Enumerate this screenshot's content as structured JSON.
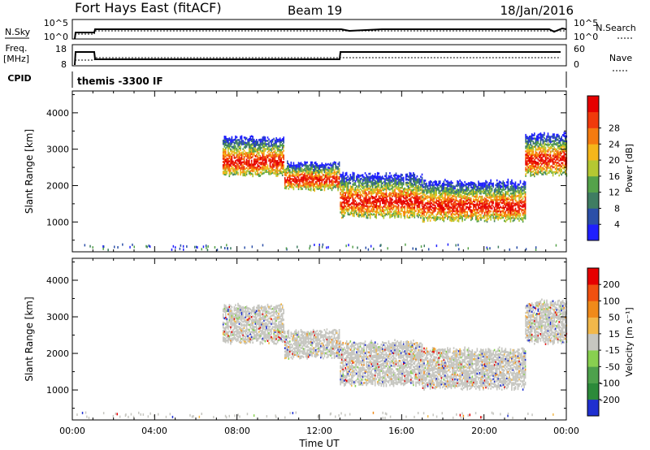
{
  "header": {
    "station": "Fort Hays East (fitACF)",
    "beam": "Beam 19",
    "date": "18/Jan/2016"
  },
  "top_panels": {
    "nsky_label": "N.Sky",
    "nsky_ticks": [
      "10^5",
      "10^0"
    ],
    "nsearch_label": "N.Search",
    "nsearch_ticks": [
      "10^5",
      "10^0"
    ],
    "freq_label_1": "Freq.",
    "freq_label_2": "[MHz]",
    "freq_ticks": [
      "18",
      "8"
    ],
    "nave_label": "Nave",
    "nave_ticks": [
      "60",
      "0"
    ],
    "cpid_label": "CPID",
    "cpid_text": "themis -3300 IF"
  },
  "axes": {
    "xlabel": "Time UT",
    "xticks": [
      "00:00",
      "04:00",
      "08:00",
      "12:00",
      "16:00",
      "20:00",
      "00:00"
    ],
    "ylabel": "Slant Range [km]",
    "yticks": [
      "1000",
      "2000",
      "3000",
      "4000"
    ]
  },
  "power_colorbar": {
    "label": "Power [dB]",
    "ticks": [
      "4",
      "8",
      "12",
      "16",
      "20",
      "24",
      "28"
    ],
    "colors": [
      "#1f1fff",
      "#2b4fa8",
      "#3f7d62",
      "#55a24a",
      "#b5c832",
      "#f5b61a",
      "#f57b10",
      "#f03a0c",
      "#e60000"
    ]
  },
  "velocity_colorbar": {
    "label": "Velocity [m s⁻¹]",
    "ticks": [
      "200",
      "100",
      "50",
      "15",
      "-15",
      "-50",
      "-100",
      "-200"
    ],
    "colors": [
      "#1f2fd0",
      "#2c8a3a",
      "#4ea14c",
      "#88d050",
      "#c6c6c0",
      "#f2b84a",
      "#f08a1a",
      "#f05010",
      "#e60000"
    ]
  },
  "chart_data": {
    "type": "heatmap",
    "x_range_hours": [
      0,
      24
    ],
    "y_range_km": [
      180,
      4600
    ],
    "panels": [
      {
        "name": "Power",
        "parameter": "Power [dB]",
        "scatter_bands": [
          {
            "t_start": 7.3,
            "t_end": 10.3,
            "range_lo_km": 2300,
            "range_hi_km": 3300
          },
          {
            "t_start": 10.3,
            "t_end": 13.0,
            "range_lo_km": 1900,
            "range_hi_km": 2600
          },
          {
            "t_start": 13.0,
            "t_end": 17.0,
            "range_lo_km": 1150,
            "range_hi_km": 2300
          },
          {
            "t_start": 17.0,
            "t_end": 22.0,
            "range_lo_km": 1050,
            "range_hi_km": 2100
          },
          {
            "t_start": 22.0,
            "t_end": 24.0,
            "range_lo_km": 2300,
            "range_hi_km": 3400
          }
        ]
      },
      {
        "name": "Velocity",
        "parameter": "Velocity [m s^-1]",
        "note_free": true,
        "scatter_bands": [
          {
            "t_start": 7.3,
            "t_end": 10.3,
            "range_lo_km": 2300,
            "range_hi_km": 3300
          },
          {
            "t_start": 10.3,
            "t_end": 13.0,
            "range_lo_km": 1900,
            "range_hi_km": 2600
          },
          {
            "t_start": 13.0,
            "t_end": 17.0,
            "range_lo_km": 1150,
            "range_hi_km": 2300
          },
          {
            "t_start": 17.0,
            "t_end": 22.0,
            "range_lo_km": 1050,
            "range_hi_km": 2100
          },
          {
            "t_start": 22.0,
            "t_end": 24.0,
            "range_lo_km": 2300,
            "range_hi_km": 3400
          }
        ]
      }
    ]
  }
}
